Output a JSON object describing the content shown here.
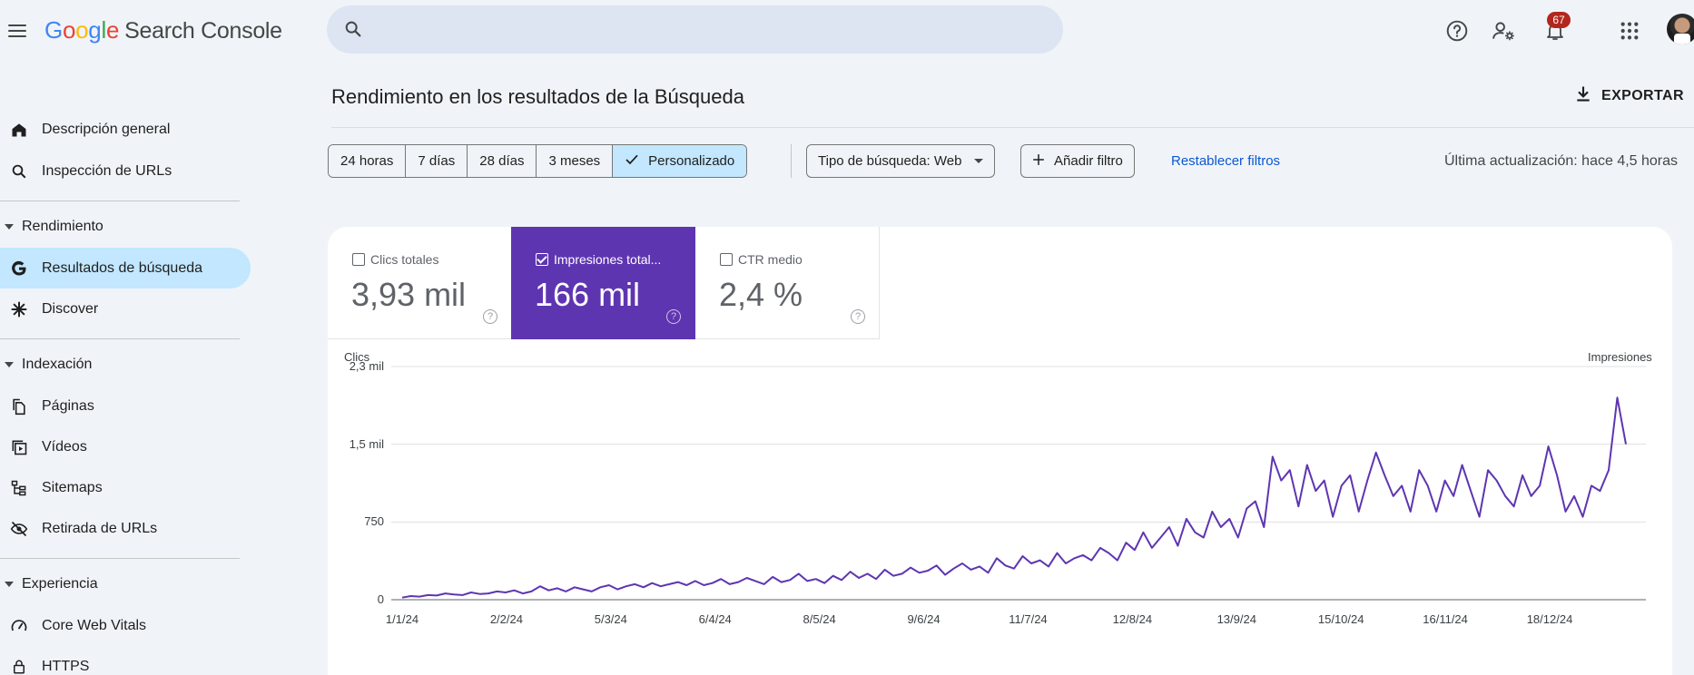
{
  "header": {
    "logo_letters": [
      "G",
      "o",
      "o",
      "g",
      "l",
      "e"
    ],
    "product_name": "Search Console",
    "search_placeholder": "",
    "notification_count": "67"
  },
  "sidebar": {
    "top_items": [
      {
        "label": "Descripción general",
        "icon": "home-icon"
      },
      {
        "label": "Inspección de URLs",
        "icon": "search-icon"
      }
    ],
    "sections": [
      {
        "title": "Rendimiento",
        "items": [
          {
            "label": "Resultados de búsqueda",
            "icon": "google-g-icon",
            "active": true
          },
          {
            "label": "Discover",
            "icon": "asterisk-icon",
            "active": false
          }
        ]
      },
      {
        "title": "Indexación",
        "items": [
          {
            "label": "Páginas",
            "icon": "pages-icon"
          },
          {
            "label": "Vídeos",
            "icon": "video-icon"
          },
          {
            "label": "Sitemaps",
            "icon": "sitemap-icon"
          },
          {
            "label": "Retirada de URLs",
            "icon": "eye-off-icon"
          }
        ]
      },
      {
        "title": "Experiencia",
        "items": [
          {
            "label": "Core Web Vitals",
            "icon": "gauge-icon"
          },
          {
            "label": "HTTPS",
            "icon": "lock-icon"
          }
        ]
      }
    ]
  },
  "main": {
    "title": "Rendimiento en los resultados de la Búsqueda",
    "export_label": "EXPORTAR",
    "date_ranges": [
      "24 horas",
      "7 días",
      "28 días",
      "3 meses",
      "Personalizado"
    ],
    "selected_range": "Personalizado",
    "search_type_label": "Tipo de búsqueda: Web",
    "add_filter_label": "Añadir filtro",
    "reset_filters_label": "Restablecer filtros",
    "last_update": "Última actualización: hace 4,5 horas"
  },
  "metrics": [
    {
      "label": "Clics totales",
      "value": "3,93 mil",
      "checked": false
    },
    {
      "label": "Impresiones total...",
      "value": "166 mil",
      "checked": true
    },
    {
      "label": "CTR medio",
      "value": "2,4 %",
      "checked": false
    }
  ],
  "colors": {
    "impressions": "#5e35b1",
    "active_nav": "#c2e7ff",
    "link": "#0b57d0"
  },
  "chart_data": {
    "type": "line",
    "left_axis_label": "Clics",
    "right_axis_label": "Impresiones",
    "y_tick_labels": [
      "2,3 mil",
      "1,5 mil",
      "750",
      "0"
    ],
    "y_tick_values": [
      2250,
      1500,
      750,
      0
    ],
    "ylim": [
      0,
      2250
    ],
    "x_tick_labels": [
      "1/1/24",
      "2/2/24",
      "5/3/24",
      "6/4/24",
      "8/5/24",
      "9/6/24",
      "11/7/24",
      "12/8/24",
      "13/9/24",
      "15/10/24",
      "16/11/24",
      "18/12/24"
    ],
    "grid": true,
    "series": [
      {
        "name": "Impresiones",
        "color": "#5e35b1",
        "x_start": "1/1/24",
        "x_step": "3 days",
        "values": [
          20,
          35,
          30,
          45,
          40,
          60,
          50,
          45,
          70,
          55,
          60,
          80,
          70,
          90,
          60,
          80,
          130,
          90,
          110,
          80,
          120,
          100,
          80,
          120,
          140,
          100,
          130,
          150,
          120,
          160,
          130,
          150,
          170,
          140,
          180,
          140,
          160,
          200,
          150,
          170,
          210,
          180,
          150,
          220,
          170,
          190,
          250,
          180,
          200,
          160,
          230,
          190,
          270,
          210,
          250,
          200,
          290,
          230,
          250,
          310,
          260,
          280,
          330,
          240,
          300,
          350,
          290,
          320,
          260,
          400,
          330,
          300,
          420,
          350,
          380,
          320,
          450,
          350,
          400,
          430,
          380,
          500,
          450,
          380,
          550,
          480,
          650,
          500,
          600,
          700,
          520,
          780,
          650,
          600,
          850,
          700,
          780,
          600,
          880,
          950,
          700,
          1380,
          1150,
          1250,
          900,
          1300,
          1050,
          1150,
          800,
          1100,
          1200,
          850,
          1150,
          1420,
          1200,
          1000,
          1100,
          850,
          1250,
          1100,
          850,
          1150,
          1000,
          1300,
          1050,
          800,
          1250,
          1150,
          1000,
          900,
          1200,
          1000,
          1100,
          1480,
          1200,
          850,
          1000,
          800,
          1100,
          1050,
          1250,
          1950,
          1500
        ]
      }
    ]
  }
}
